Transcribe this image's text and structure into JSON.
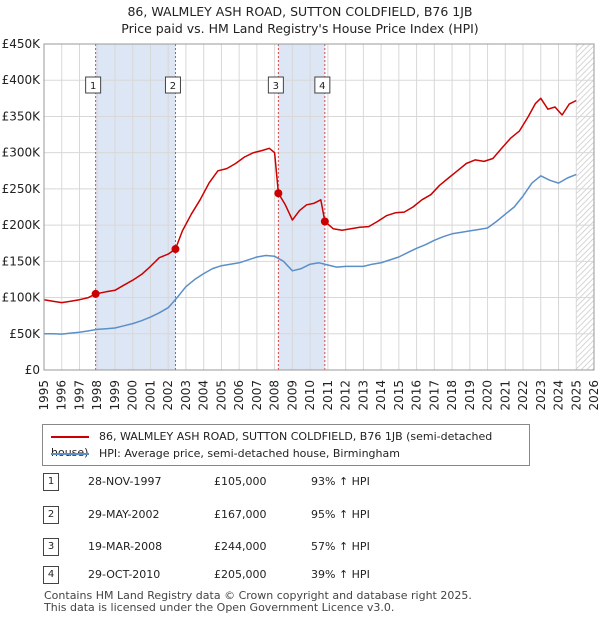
{
  "title_line1": "86, WALMLEY ASH ROAD, SUTTON COLDFIELD, B76 1JB",
  "title_line2": "Price paid vs. HM Land Registry's House Price Index (HPI)",
  "chart_data": {
    "type": "line",
    "xlim": [
      1995,
      2026
    ],
    "ylim": [
      0,
      450000
    ],
    "y_ticks": [
      0,
      50000,
      100000,
      150000,
      200000,
      250000,
      300000,
      350000,
      400000,
      450000
    ],
    "y_tick_labels": [
      "£0",
      "£50K",
      "£100K",
      "£150K",
      "£200K",
      "£250K",
      "£300K",
      "£350K",
      "£400K",
      "£450K"
    ],
    "x_ticks": [
      1995,
      1996,
      1997,
      1998,
      1999,
      2000,
      2001,
      2002,
      2003,
      2004,
      2005,
      2006,
      2007,
      2008,
      2009,
      2010,
      2011,
      2012,
      2013,
      2014,
      2015,
      2016,
      2017,
      2018,
      2019,
      2020,
      2021,
      2022,
      2023,
      2024,
      2025,
      2026
    ],
    "grid": true,
    "data_end_hatch_from": 2025.0,
    "series": [
      {
        "name": "86, WALMLEY ASH ROAD, SUTTON COLDFIELD, B76 1JB (semi-detached house)",
        "color": "#cc0000",
        "x": [
          1995.0,
          1995.5,
          1996.0,
          1996.5,
          1997.0,
          1997.5,
          1997.91,
          1998.5,
          1999.0,
          1999.5,
          2000.0,
          2000.5,
          2001.0,
          2001.5,
          2002.0,
          2002.41,
          2002.8,
          2003.3,
          2003.8,
          2004.3,
          2004.8,
          2005.3,
          2005.8,
          2006.3,
          2006.8,
          2007.3,
          2007.7,
          2008.0,
          2008.21,
          2008.6,
          2009.0,
          2009.4,
          2009.8,
          2010.2,
          2010.6,
          2010.83,
          2011.3,
          2011.8,
          2012.3,
          2012.8,
          2013.3,
          2013.8,
          2014.3,
          2014.8,
          2015.3,
          2015.8,
          2016.3,
          2016.8,
          2017.3,
          2017.8,
          2018.3,
          2018.8,
          2019.3,
          2019.8,
          2020.3,
          2020.8,
          2021.3,
          2021.8,
          2022.3,
          2022.7,
          2023.0,
          2023.4,
          2023.8,
          2024.2,
          2024.6,
          2025.0
        ],
        "y": [
          97000,
          95000,
          93000,
          95000,
          97000,
          100000,
          105000,
          108000,
          110000,
          117000,
          124000,
          132000,
          143000,
          155000,
          160000,
          167000,
          192000,
          215000,
          235000,
          258000,
          275000,
          278000,
          285000,
          294000,
          300000,
          303000,
          306000,
          300000,
          244000,
          228000,
          207000,
          220000,
          228000,
          230000,
          235000,
          205000,
          195000,
          193000,
          195000,
          197000,
          198000,
          205000,
          213000,
          217000,
          218000,
          225000,
          235000,
          242000,
          255000,
          265000,
          275000,
          285000,
          290000,
          288000,
          292000,
          306000,
          320000,
          330000,
          350000,
          368000,
          375000,
          360000,
          363000,
          352000,
          367000,
          372000
        ]
      },
      {
        "name": "HPI: Average price, semi-detached house, Birmingham",
        "color": "#5b8fc9",
        "x": [
          1995.0,
          1995.5,
          1996.0,
          1996.5,
          1997.0,
          1997.5,
          1998.0,
          1998.5,
          1999.0,
          1999.5,
          2000.0,
          2000.5,
          2001.0,
          2001.5,
          2002.0,
          2002.5,
          2003.0,
          2003.5,
          2004.0,
          2004.5,
          2005.0,
          2005.5,
          2006.0,
          2006.5,
          2007.0,
          2007.5,
          2008.0,
          2008.5,
          2009.0,
          2009.5,
          2010.0,
          2010.5,
          2011.0,
          2011.5,
          2012.0,
          2012.5,
          2013.0,
          2013.5,
          2014.0,
          2014.5,
          2015.0,
          2015.5,
          2016.0,
          2016.5,
          2017.0,
          2017.5,
          2018.0,
          2018.5,
          2019.0,
          2019.5,
          2020.0,
          2020.5,
          2021.0,
          2021.5,
          2022.0,
          2022.5,
          2023.0,
          2023.5,
          2024.0,
          2024.5,
          2025.0
        ],
        "y": [
          50000,
          50000,
          49500,
          51000,
          52000,
          54000,
          56000,
          57000,
          58000,
          61000,
          64000,
          68000,
          73000,
          79000,
          86000,
          100000,
          115000,
          125000,
          133000,
          140000,
          144000,
          146000,
          148000,
          152000,
          156000,
          158000,
          157000,
          150000,
          137000,
          140000,
          146000,
          148000,
          145000,
          142000,
          143000,
          143000,
          143000,
          146000,
          148000,
          152000,
          156000,
          162000,
          168000,
          173000,
          179000,
          184000,
          188000,
          190000,
          192000,
          194000,
          196000,
          205000,
          215000,
          225000,
          240000,
          258000,
          268000,
          262000,
          258000,
          265000,
          270000
        ]
      }
    ],
    "sale_markers": [
      {
        "label": "1",
        "x": 1997.91,
        "y": 105000
      },
      {
        "label": "2",
        "x": 2002.41,
        "y": 167000
      },
      {
        "label": "3",
        "x": 2008.21,
        "y": 244000
      },
      {
        "label": "4",
        "x": 2010.83,
        "y": 205000
      }
    ],
    "shaded_spans": [
      [
        1997.91,
        2002.41
      ],
      [
        2008.21,
        2010.83
      ]
    ]
  },
  "legend": {
    "entries": [
      {
        "label": "86, WALMLEY ASH ROAD, SUTTON COLDFIELD, B76 1JB (semi-detached house)",
        "color": "#cc0000"
      },
      {
        "label": "HPI: Average price, semi-detached house, Birmingham",
        "color": "#5b8fc9"
      }
    ]
  },
  "sales_table": [
    {
      "num": "1",
      "date": "28-NOV-1997",
      "price": "£105,000",
      "hpi": "93% ↑ HPI"
    },
    {
      "num": "2",
      "date": "29-MAY-2002",
      "price": "£167,000",
      "hpi": "95% ↑ HPI"
    },
    {
      "num": "3",
      "date": "19-MAR-2008",
      "price": "£244,000",
      "hpi": "57% ↑ HPI"
    },
    {
      "num": "4",
      "date": "29-OCT-2010",
      "price": "£205,000",
      "hpi": "39% ↑ HPI"
    }
  ],
  "footer_line1": "Contains HM Land Registry data © Crown copyright and database right 2025.",
  "footer_line2": "This data is licensed under the Open Government Licence v3.0."
}
